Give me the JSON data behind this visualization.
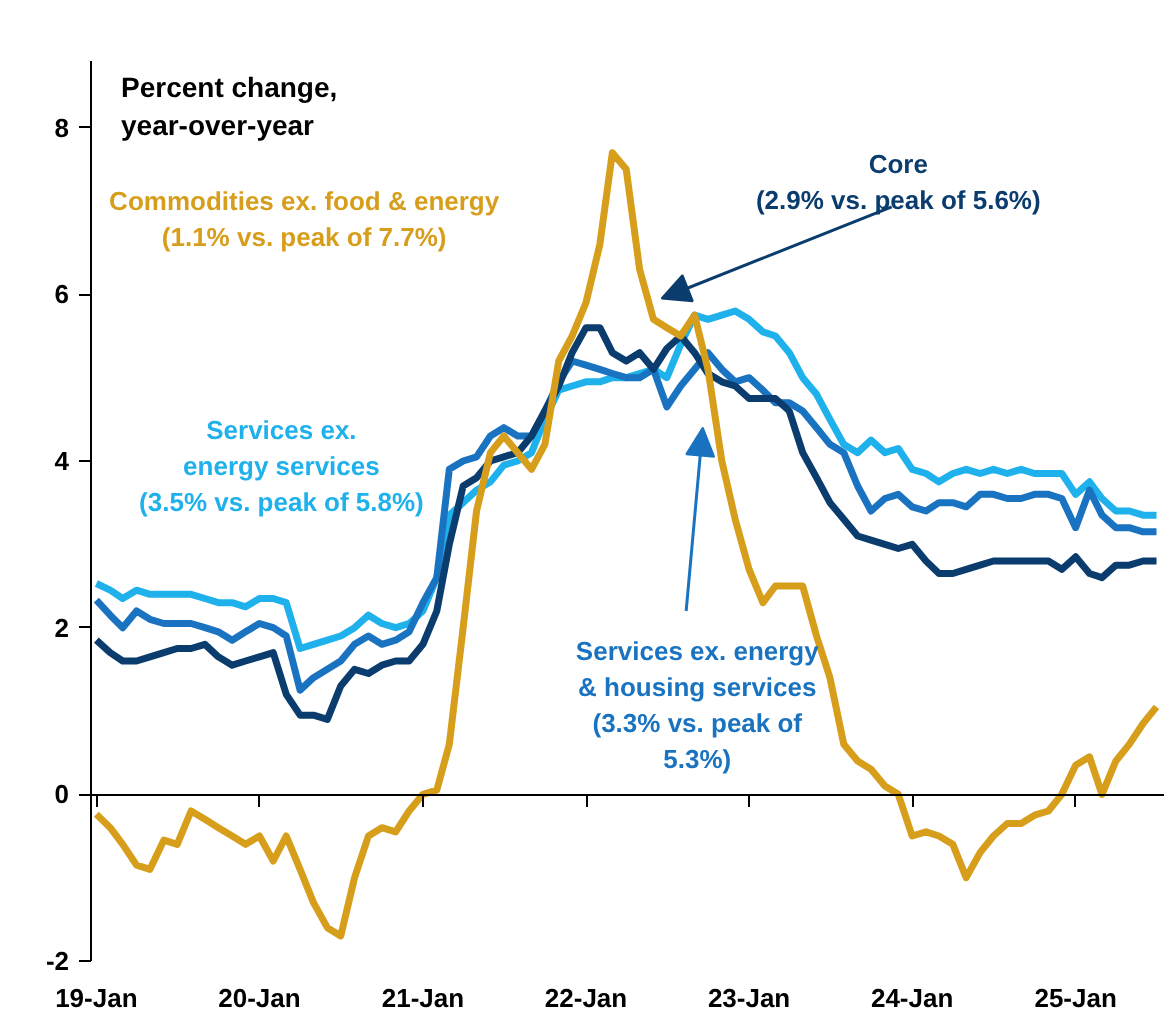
{
  "chart_data": {
    "type": "line",
    "ylabel": "Percent change,\nyear-over-year",
    "x": [
      "2019-01",
      "2019-02",
      "2019-03",
      "2019-04",
      "2019-05",
      "2019-06",
      "2019-07",
      "2019-08",
      "2019-09",
      "2019-10",
      "2019-11",
      "2019-12",
      "2020-01",
      "2020-02",
      "2020-03",
      "2020-04",
      "2020-05",
      "2020-06",
      "2020-07",
      "2020-08",
      "2020-09",
      "2020-10",
      "2020-11",
      "2020-12",
      "2021-01",
      "2021-02",
      "2021-03",
      "2021-04",
      "2021-05",
      "2021-06",
      "2021-07",
      "2021-08",
      "2021-09",
      "2021-10",
      "2021-11",
      "2021-12",
      "2022-01",
      "2022-02",
      "2022-03",
      "2022-04",
      "2022-05",
      "2022-06",
      "2022-07",
      "2022-08",
      "2022-09",
      "2022-10",
      "2022-11",
      "2022-12",
      "2023-01",
      "2023-02",
      "2023-03",
      "2023-04",
      "2023-05",
      "2023-06",
      "2023-07",
      "2023-08",
      "2023-09",
      "2023-10",
      "2023-11",
      "2023-12",
      "2024-01",
      "2024-02",
      "2024-03",
      "2024-04",
      "2024-05",
      "2024-06",
      "2024-07",
      "2024-08",
      "2024-09",
      "2024-10",
      "2024-11",
      "2024-12",
      "2025-01",
      "2025-02",
      "2025-03",
      "2025-04",
      "2025-05",
      "2025-06",
      "2025-07"
    ],
    "series": [
      {
        "name": "Services ex.\nenergy services\n(3.5% vs. peak of 5.8%)",
        "color": "#1eb1ec",
        "values": [
          2.53,
          2.45,
          2.35,
          2.45,
          2.4,
          2.4,
          2.4,
          2.4,
          2.35,
          2.3,
          2.3,
          2.25,
          2.35,
          2.35,
          2.3,
          1.75,
          1.8,
          1.85,
          1.9,
          2.0,
          2.15,
          2.05,
          2.0,
          2.05,
          2.2,
          2.6,
          3.35,
          3.5,
          3.65,
          3.75,
          3.95,
          4.0,
          4.1,
          4.5,
          4.85,
          4.9,
          4.95,
          4.95,
          5.0,
          5.0,
          5.05,
          5.1,
          5.0,
          5.4,
          5.75,
          5.7,
          5.75,
          5.8,
          5.7,
          5.55,
          5.5,
          5.3,
          5.0,
          4.8,
          4.5,
          4.2,
          4.1,
          4.25,
          4.1,
          4.15,
          3.9,
          3.85,
          3.75,
          3.85,
          3.9,
          3.85,
          3.9,
          3.85,
          3.9,
          3.85,
          3.85,
          3.85,
          3.6,
          3.75,
          3.55,
          3.4,
          3.4,
          3.35,
          3.35
        ]
      },
      {
        "name": "Services ex. energy\n& housing services\n(3.3% vs. peak of\n5.3%)",
        "color": "#1a73c0",
        "values": [
          2.33,
          2.15,
          2.0,
          2.2,
          2.1,
          2.05,
          2.05,
          2.05,
          2.0,
          1.95,
          1.85,
          1.95,
          2.05,
          2.0,
          1.9,
          1.25,
          1.4,
          1.5,
          1.6,
          1.8,
          1.9,
          1.8,
          1.85,
          1.95,
          2.3,
          2.6,
          3.9,
          4.0,
          4.05,
          4.3,
          4.4,
          4.3,
          4.3,
          4.6,
          4.95,
          5.2,
          5.15,
          5.1,
          5.05,
          5.0,
          5.0,
          5.1,
          4.65,
          4.9,
          5.1,
          5.3,
          5.1,
          4.95,
          5.0,
          4.85,
          4.7,
          4.7,
          4.6,
          4.4,
          4.2,
          4.1,
          3.7,
          3.4,
          3.55,
          3.6,
          3.45,
          3.4,
          3.5,
          3.5,
          3.45,
          3.6,
          3.6,
          3.55,
          3.55,
          3.6,
          3.6,
          3.55,
          3.2,
          3.65,
          3.35,
          3.2,
          3.2,
          3.15,
          3.15
        ]
      },
      {
        "name": "Core\n(2.9% vs. peak of 5.6%)",
        "color": "#0b3c6e",
        "values": [
          1.85,
          1.7,
          1.6,
          1.6,
          1.65,
          1.7,
          1.75,
          1.75,
          1.8,
          1.65,
          1.55,
          1.6,
          1.65,
          1.7,
          1.2,
          0.95,
          0.95,
          0.9,
          1.3,
          1.5,
          1.45,
          1.55,
          1.6,
          1.6,
          1.8,
          2.2,
          3.0,
          3.7,
          3.8,
          4.0,
          4.05,
          4.1,
          4.3,
          4.6,
          4.9,
          5.3,
          5.6,
          5.6,
          5.3,
          5.2,
          5.3,
          5.1,
          5.35,
          5.5,
          5.3,
          5.05,
          4.95,
          4.9,
          4.75,
          4.75,
          4.75,
          4.6,
          4.1,
          3.8,
          3.5,
          3.3,
          3.1,
          3.05,
          3.0,
          2.95,
          3.0,
          2.8,
          2.65,
          2.65,
          2.7,
          2.75,
          2.8,
          2.8,
          2.8,
          2.8,
          2.8,
          2.7,
          2.85,
          2.65,
          2.6,
          2.75,
          2.75,
          2.8,
          2.8
        ]
      },
      {
        "name": "Commodities ex. food & energy\n(1.1% vs. peak of 7.7%)",
        "color": "#d69e1a",
        "values": [
          -0.24,
          -0.4,
          -0.6,
          -0.85,
          -0.9,
          -0.55,
          -0.6,
          -0.2,
          -0.3,
          -0.4,
          -0.5,
          -0.6,
          -0.5,
          -0.8,
          -0.5,
          -0.9,
          -1.3,
          -1.6,
          -1.7,
          -1.0,
          -0.5,
          -0.4,
          -0.45,
          -0.2,
          0.0,
          0.05,
          0.6,
          2.0,
          3.4,
          4.1,
          4.3,
          4.1,
          3.9,
          4.2,
          5.2,
          5.5,
          5.9,
          6.6,
          7.7,
          7.5,
          6.3,
          5.7,
          5.6,
          5.5,
          5.75,
          5.1,
          4.0,
          3.3,
          2.7,
          2.3,
          2.5,
          2.5,
          2.5,
          1.9,
          1.4,
          0.6,
          0.4,
          0.3,
          0.1,
          0.0,
          -0.5,
          -0.45,
          -0.5,
          -0.6,
          -1.0,
          -0.7,
          -0.5,
          -0.35,
          -0.35,
          -0.25,
          -0.2,
          0.0,
          0.35,
          0.45,
          0.0,
          0.4,
          0.6,
          0.85,
          1.05
        ]
      }
    ],
    "xlim": [
      "2018-12-20",
      "2025-07-20"
    ],
    "xticks": [
      {
        "value": "2019-01",
        "label": "19-Jan"
      },
      {
        "value": "2020-01",
        "label": "20-Jan"
      },
      {
        "value": "2021-01",
        "label": "21-Jan"
      },
      {
        "value": "2022-01",
        "label": "22-Jan"
      },
      {
        "value": "2023-01",
        "label": "23-Jan"
      },
      {
        "value": "2024-01",
        "label": "24-Jan"
      },
      {
        "value": "2025-01",
        "label": "25-Jan"
      }
    ],
    "ylim": [
      -2,
      8.8
    ],
    "yticks": [
      -2,
      0,
      2,
      4,
      6,
      8
    ]
  }
}
